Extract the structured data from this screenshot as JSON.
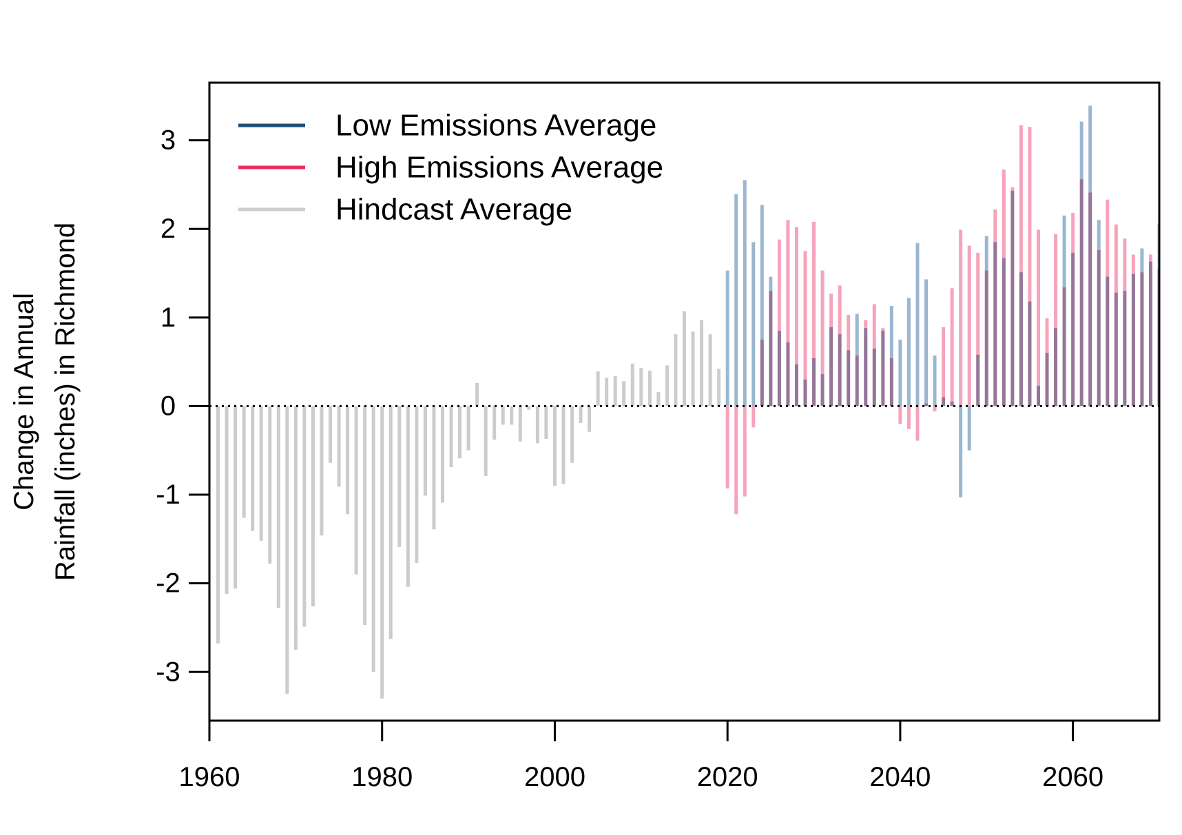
{
  "chart_data": {
    "type": "bar",
    "title": "",
    "xlabel": "",
    "ylabel": [
      "Change in Annual",
      "Rainfall (inches) in Richmond"
    ],
    "xlim": [
      1960,
      2070
    ],
    "ylim": [
      -3.55,
      3.65
    ],
    "x_ticks": [
      1960,
      1980,
      2000,
      2020,
      2040,
      2060
    ],
    "y_ticks": [
      3,
      2,
      1,
      0,
      -1,
      -2,
      -3
    ],
    "grid": false,
    "reference_line": 0,
    "legend_position": "top-left",
    "legend_colors": {
      "low": "#1f4e79",
      "high": "#ee2a64",
      "hindcast": "#cccccc"
    },
    "bar_colors": {
      "low": "#9ab7d0",
      "high": "#f7a3bb",
      "hindcast": "#cccccc"
    },
    "series": [
      {
        "name": "Hindcast Average",
        "x": [
          1961,
          1962,
          1963,
          1964,
          1965,
          1966,
          1967,
          1968,
          1969,
          1970,
          1971,
          1972,
          1973,
          1974,
          1975,
          1976,
          1977,
          1978,
          1979,
          1980,
          1981,
          1982,
          1983,
          1984,
          1985,
          1986,
          1987,
          1988,
          1989,
          1990,
          1991,
          1992,
          1993,
          1994,
          1995,
          1996,
          1997,
          1998,
          1999,
          2000,
          2001,
          2002,
          2003,
          2004,
          2005,
          2006,
          2007,
          2008,
          2009,
          2010,
          2011,
          2012,
          2013,
          2014,
          2015,
          2016,
          2017,
          2018,
          2019
        ],
        "values": [
          -2.68,
          -2.12,
          -2.06,
          -1.26,
          -1.41,
          -1.52,
          -1.78,
          -2.28,
          -3.25,
          -2.75,
          -2.49,
          -2.26,
          -1.46,
          -0.64,
          -0.91,
          -1.22,
          -1.9,
          -2.47,
          -3.0,
          -3.3,
          -2.63,
          -1.59,
          -2.04,
          -1.77,
          -1.01,
          -1.39,
          -1.09,
          -0.69,
          -0.59,
          -0.5,
          0.26,
          -0.79,
          -0.38,
          -0.21,
          -0.21,
          -0.4,
          -0.04,
          -0.42,
          -0.37,
          -0.9,
          -0.88,
          -0.64,
          -0.19,
          -0.29,
          0.39,
          0.32,
          0.34,
          0.28,
          0.48,
          0.43,
          0.4,
          0.16,
          0.46,
          0.81,
          1.07,
          0.84,
          0.97,
          0.81,
          0.42
        ]
      },
      {
        "name": "Low Emissions Average",
        "x": [
          2020,
          2021,
          2022,
          2023,
          2024,
          2025,
          2026,
          2027,
          2028,
          2029,
          2030,
          2031,
          2032,
          2033,
          2034,
          2035,
          2036,
          2037,
          2038,
          2039,
          2040,
          2041,
          2042,
          2043,
          2044,
          2045,
          2046,
          2047,
          2048,
          2049,
          2050,
          2051,
          2052,
          2053,
          2054,
          2055,
          2056,
          2057,
          2058,
          2059,
          2060,
          2061,
          2062,
          2063,
          2064,
          2065,
          2066,
          2067,
          2068,
          2069,
          2070
        ],
        "values": [
          1.53,
          2.39,
          2.55,
          1.85,
          2.27,
          1.46,
          0.85,
          0.72,
          0.47,
          0.3,
          0.54,
          0.36,
          0.89,
          0.81,
          0.63,
          1.04,
          0.88,
          0.65,
          0.85,
          1.13,
          0.75,
          1.22,
          1.84,
          1.43,
          0.57,
          0.1,
          0.05,
          -1.03,
          -0.5,
          0.58,
          1.92,
          1.85,
          1.67,
          2.43,
          1.51,
          1.18,
          0.23,
          0.6,
          0.88,
          2.15,
          1.73,
          3.21,
          3.39,
          2.1,
          1.46,
          1.28,
          1.3,
          1.49,
          1.78,
          1.63,
          2.06
        ]
      },
      {
        "name": "High Emissions Average",
        "x": [
          2020,
          2021,
          2022,
          2023,
          2024,
          2025,
          2026,
          2027,
          2028,
          2029,
          2030,
          2031,
          2032,
          2033,
          2034,
          2035,
          2036,
          2037,
          2038,
          2039,
          2040,
          2041,
          2042,
          2043,
          2044,
          2045,
          2046,
          2047,
          2048,
          2049,
          2050,
          2051,
          2052,
          2053,
          2054,
          2055,
          2056,
          2057,
          2058,
          2059,
          2060,
          2061,
          2062,
          2063,
          2064,
          2065,
          2066,
          2067,
          2068,
          2069,
          2070
        ],
        "values": [
          -0.93,
          -1.22,
          -1.02,
          -0.24,
          0.75,
          1.3,
          1.88,
          2.1,
          2.02,
          1.75,
          2.08,
          1.53,
          1.27,
          1.36,
          1.03,
          0.57,
          0.97,
          1.15,
          0.88,
          0.54,
          -0.2,
          -0.26,
          -0.39,
          0.03,
          -0.06,
          0.89,
          1.33,
          1.99,
          1.81,
          1.73,
          1.53,
          2.22,
          2.67,
          2.47,
          3.17,
          3.15,
          1.99,
          0.99,
          1.94,
          1.34,
          2.18,
          2.56,
          2.41,
          1.76,
          2.33,
          2.05,
          1.89,
          1.71,
          1.51,
          1.71,
          1.55
        ]
      }
    ]
  }
}
